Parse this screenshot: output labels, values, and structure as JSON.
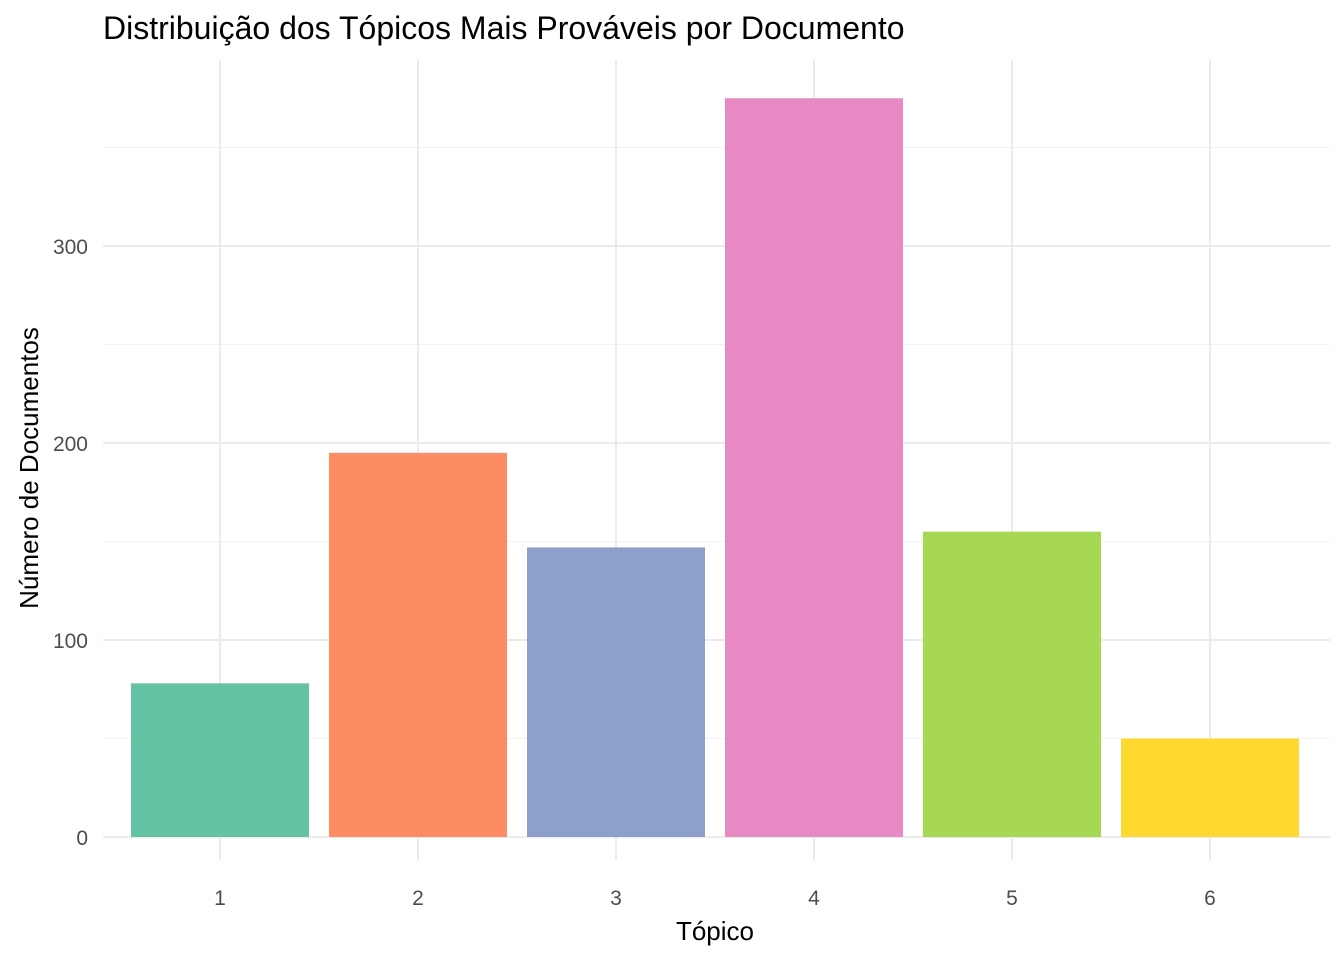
{
  "chart_data": {
    "type": "bar",
    "title": "Distribuição dos Tópicos Mais Prováveis por Documento",
    "xlabel": "Tópico",
    "ylabel": "Número de Documentos",
    "categories": [
      "1",
      "2",
      "3",
      "4",
      "5",
      "6"
    ],
    "values": [
      78,
      195,
      147,
      375,
      155,
      50
    ],
    "colors": [
      "#66c2a5",
      "#fc8d62",
      "#8da0cb",
      "#e78ac3",
      "#a6d854",
      "#ffd92f"
    ],
    "ylim": [
      0,
      375
    ],
    "y_ticks": [
      0,
      100,
      200,
      300
    ],
    "grid": true,
    "legend": "none"
  }
}
